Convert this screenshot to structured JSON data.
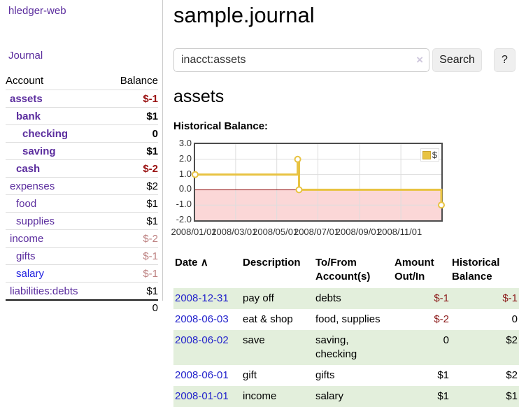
{
  "app": {
    "brand": "hledger-web",
    "nav_journal": "Journal"
  },
  "sidebar": {
    "header": {
      "account": "Account",
      "balance": "Balance"
    },
    "accounts": [
      {
        "name": "assets",
        "balance": "$-1"
      },
      {
        "name": "bank",
        "balance": "$1"
      },
      {
        "name": "checking",
        "balance": "0"
      },
      {
        "name": "saving",
        "balance": "$1"
      },
      {
        "name": "cash",
        "balance": "$-2"
      },
      {
        "name": "expenses",
        "balance": "$2"
      },
      {
        "name": "food",
        "balance": "$1"
      },
      {
        "name": "supplies",
        "balance": "$1"
      },
      {
        "name": "income",
        "balance": "$-2"
      },
      {
        "name": "gifts",
        "balance": "$-1"
      },
      {
        "name": "salary",
        "balance": "$-1"
      },
      {
        "name": "liabilities:debts",
        "balance": "$1"
      }
    ],
    "total": "0"
  },
  "header": {
    "title": "sample.journal"
  },
  "search": {
    "value": "inacct:assets",
    "clear_icon": "×",
    "button_label": "Search",
    "help_label": "?"
  },
  "account_page": {
    "title": "assets",
    "chart_label": "Historical Balance:"
  },
  "chart_data": {
    "type": "line",
    "title": "Historical Balance",
    "series": [
      {
        "name": "$",
        "style": "step-after",
        "points": [
          [
            "2008-01-01",
            1
          ],
          [
            "2008-06-01",
            2
          ],
          [
            "2008-06-03",
            0
          ],
          [
            "2008-12-31",
            -1
          ]
        ]
      }
    ],
    "x_range": [
      "2008-01-01",
      "2008-12-31"
    ],
    "ylim": [
      -2,
      3
    ],
    "yticks": [
      3.0,
      2.0,
      1.0,
      0.0,
      -1.0,
      -2.0
    ],
    "xticks": [
      {
        "label": "2008/01/01",
        "date": "2008-01-01"
      },
      {
        "label": "2008/03/01",
        "date": "2008-03-01"
      },
      {
        "label": "2008/05/01",
        "date": "2008-05-01"
      },
      {
        "label": "2008/07/01",
        "date": "2008-07-01"
      },
      {
        "label": "2008/09/01",
        "date": "2008-09-01"
      },
      {
        "label": "2008/11/01",
        "date": "2008-11-01"
      }
    ],
    "legend_position": "top-right",
    "grid": true,
    "colors": {
      "line": "#e8c342",
      "marker_fill": "#ffffff",
      "negative_fill": "#fbd7d7",
      "zero_line": "#8b0000",
      "grid": "#dddddd",
      "border": "#4d4d4d"
    }
  },
  "register": {
    "sort_icon": "∧",
    "headers": {
      "date": "Date",
      "description": "Description",
      "accounts": "To/From Account(s)",
      "amount": "Amount Out/In",
      "balance": "Historical Balance"
    },
    "rows": [
      {
        "date": "2008-12-31",
        "description": "pay off",
        "accounts": "debts",
        "amount": "$-1",
        "balance": "$-1"
      },
      {
        "date": "2008-06-03",
        "description": "eat & shop",
        "accounts": "food, supplies",
        "amount": "$-2",
        "balance": "0"
      },
      {
        "date": "2008-06-02",
        "description": "save",
        "accounts": "saving,\nchecking",
        "amount": "0",
        "balance": "$2"
      },
      {
        "date": "2008-06-01",
        "description": "gift",
        "accounts": "gifts",
        "amount": "$1",
        "balance": "$2"
      },
      {
        "date": "2008-01-01",
        "description": "income",
        "accounts": "salary",
        "amount": "$1",
        "balance": "$1"
      }
    ]
  }
}
